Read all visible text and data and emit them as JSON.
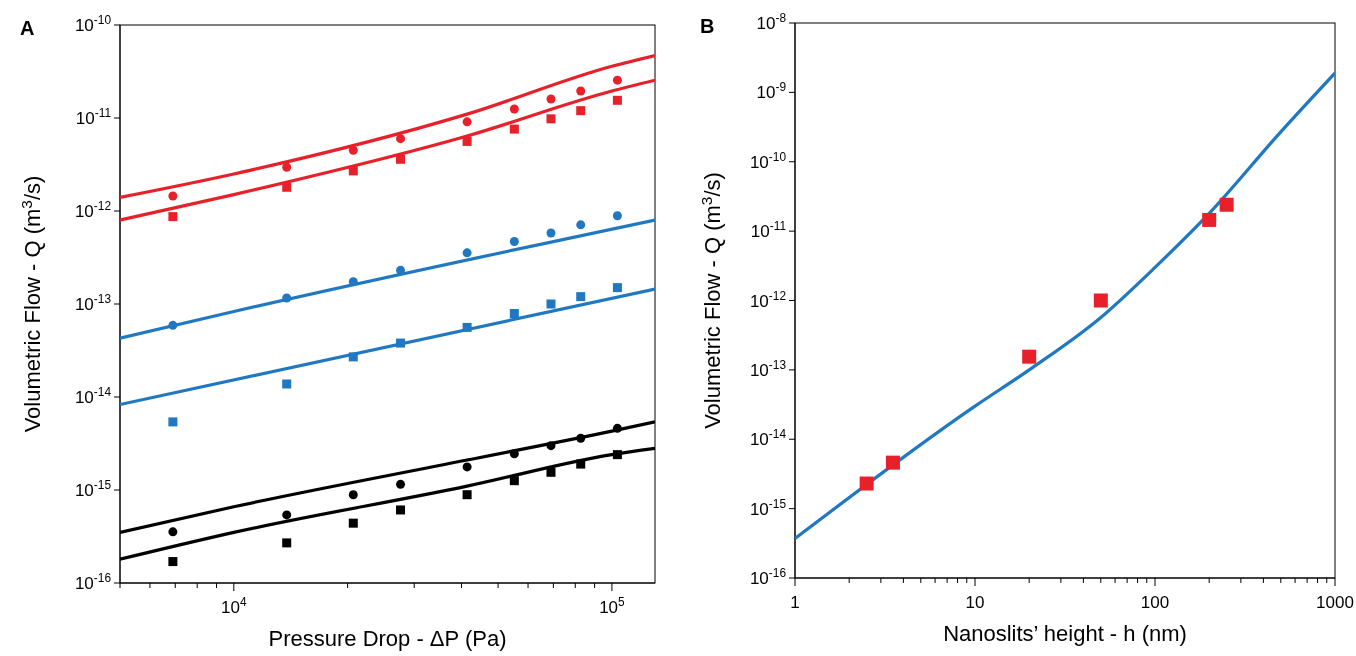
{
  "chart_data": [
    {
      "type": "scatter",
      "title": "A",
      "xlabel": "Pressure Drop - ΔP (Pa)",
      "ylabel": "Volumetric Flow - Q (m$^{3}$/s)",
      "log": "xy",
      "grid": false,
      "line_style": "solid",
      "xlim": [
        5000,
        130000
      ],
      "ylim": [
        1e-16,
        1e-10
      ],
      "xticks": [
        {
          "value": 5000,
          "label": null
        },
        {
          "value": 6000,
          "label": null
        },
        {
          "value": 7000,
          "label": null
        },
        {
          "value": 8000,
          "label": null
        },
        {
          "value": 9000,
          "label": null
        },
        {
          "value": 10000,
          "label": "10$^{4}$"
        },
        {
          "value": 20000,
          "label": null
        },
        {
          "value": 30000,
          "label": null
        },
        {
          "value": 40000,
          "label": null
        },
        {
          "value": 50000,
          "label": null
        },
        {
          "value": 60000,
          "label": null
        },
        {
          "value": 70000,
          "label": null
        },
        {
          "value": 80000,
          "label": null
        },
        {
          "value": 90000,
          "label": null
        },
        {
          "value": 100000,
          "label": "10$^{5}$"
        }
      ],
      "yticks": [
        {
          "value": 1e-16,
          "label": "10$^{-16}$"
        },
        {
          "value": 1e-15,
          "label": "10$^{-15}$"
        },
        {
          "value": 1e-14,
          "label": "10$^{-14}$"
        },
        {
          "value": 1e-13,
          "label": "10$^{-13}$"
        },
        {
          "value": 1e-12,
          "label": "10$^{-12}$"
        },
        {
          "value": 1e-11,
          "label": "10$^{-11}$"
        },
        {
          "value": 1e-10,
          "label": "10$^{-10}$"
        }
      ],
      "x": [
        6900,
        13800,
        20700,
        27600,
        41400,
        55200,
        69000,
        82700,
        103400
      ],
      "series": [
        {
          "marker": "circle",
          "color": "#e8202a",
          "values": [
            1.45e-12,
            2.95e-12,
            4.5e-12,
            6e-12,
            9.1e-12,
            1.25e-11,
            1.6e-11,
            1.95e-11,
            2.55e-11
          ]
        },
        {
          "marker": "square",
          "color": "#e8202a",
          "values": [
            8.7e-13,
            1.8e-12,
            2.7e-12,
            3.6e-12,
            5.6e-12,
            7.6e-12,
            9.8e-12,
            1.2e-11,
            1.55e-11
          ]
        },
        {
          "marker": "circle",
          "color": "#1f78c1",
          "values": [
            5.9e-14,
            1.16e-13,
            1.74e-13,
            2.3e-13,
            3.55e-13,
            4.7e-13,
            5.8e-13,
            7.1e-13,
            8.9e-13
          ]
        },
        {
          "marker": "square",
          "color": "#1f78c1",
          "values": [
            5.4e-15,
            1.38e-14,
            2.7e-14,
            3.8e-14,
            5.6e-14,
            7.9e-14,
            1e-13,
            1.2e-13,
            1.5e-13
          ]
        },
        {
          "marker": "circle",
          "color": "#000000",
          "values": [
            3.55e-16,
            5.4e-16,
            8.9e-16,
            1.15e-15,
            1.77e-15,
            2.45e-15,
            3e-15,
            3.6e-15,
            4.6e-15
          ]
        },
        {
          "marker": "square",
          "color": "#000000",
          "values": [
            1.7e-16,
            2.7e-16,
            4.4e-16,
            6.1e-16,
            8.9e-16,
            1.26e-15,
            1.55e-15,
            1.9e-15,
            2.4e-15
          ]
        },
        {
          "type": "line",
          "color": "#e8202a",
          "x": [
            5000,
            10000,
            41400,
            100000,
            130000
          ],
          "values": [
            1.4e-12,
            2.5e-12,
            1.1e-11,
            3.6e-11,
            4.7e-11
          ]
        },
        {
          "type": "line",
          "color": "#e8202a",
          "x": [
            5000,
            10000,
            41400,
            100000,
            130000
          ],
          "values": [
            8e-13,
            1.5e-12,
            6.4e-12,
            1.95e-11,
            2.55e-11
          ]
        },
        {
          "type": "line",
          "color": "#1f78c1",
          "x": [
            5000,
            10000,
            130000
          ],
          "values": [
            4.3e-14,
            8.3e-14,
            8e-13
          ]
        },
        {
          "type": "line",
          "color": "#1f78c1",
          "x": [
            5000,
            130000
          ],
          "values": [
            8.3e-15,
            1.45e-13
          ]
        },
        {
          "type": "line",
          "color": "#000000",
          "x": [
            5000,
            10000,
            41400,
            100000,
            130000
          ],
          "values": [
            3.5e-16,
            6.6e-16,
            2.1e-15,
            4.3e-15,
            5.4e-15
          ]
        },
        {
          "type": "line",
          "color": "#000000",
          "x": [
            5000,
            10000,
            41400,
            100000,
            130000
          ],
          "values": [
            1.8e-16,
            3.5e-16,
            1.1e-15,
            2.4e-15,
            2.8e-15
          ]
        }
      ]
    },
    {
      "type": "scatter",
      "title": "B",
      "xlabel": "Nanoslits’ height - h (nm)",
      "ylabel": "Volumetric Flow - Q (m$^{3}$/s)",
      "log": "xy",
      "grid": false,
      "line_style": "solid",
      "xlim": [
        1,
        1000
      ],
      "ylim": [
        1e-16,
        1e-08
      ],
      "xticks": [
        1,
        {
          "value": 2,
          "label": null
        },
        {
          "value": 3,
          "label": null
        },
        {
          "value": 4,
          "label": null
        },
        {
          "value": 5,
          "label": null
        },
        {
          "value": 6,
          "label": null
        },
        {
          "value": 7,
          "label": null
        },
        {
          "value": 8,
          "label": null
        },
        {
          "value": 9,
          "label": null
        },
        10,
        {
          "value": 20,
          "label": null
        },
        {
          "value": 30,
          "label": null
        },
        {
          "value": 40,
          "label": null
        },
        {
          "value": 50,
          "label": null
        },
        {
          "value": 60,
          "label": null
        },
        {
          "value": 70,
          "label": null
        },
        {
          "value": 80,
          "label": null
        },
        {
          "value": 90,
          "label": null
        },
        100,
        {
          "value": 200,
          "label": null
        },
        {
          "value": 300,
          "label": null
        },
        {
          "value": 400,
          "label": null
        },
        {
          "value": 500,
          "label": null
        },
        {
          "value": 600,
          "label": null
        },
        {
          "value": 700,
          "label": null
        },
        {
          "value": 800,
          "label": null
        },
        {
          "value": 900,
          "label": null
        },
        1000
      ],
      "yticks": [
        {
          "value": 1e-16,
          "label": "10$^{-16}$"
        },
        {
          "value": 1e-15,
          "label": "10$^{-15}$"
        },
        {
          "value": 1e-14,
          "label": "10$^{-14}$"
        },
        {
          "value": 1e-13,
          "label": "10$^{-13}$"
        },
        {
          "value": 1e-12,
          "label": "10$^{-12}$"
        },
        {
          "value": 1e-11,
          "label": "10$^{-11}$"
        },
        {
          "value": 1e-10,
          "label": "10$^{-10}$"
        },
        {
          "value": 1e-09,
          "label": "10$^{-9}$"
        },
        {
          "value": 1e-08,
          "label": "10$^{-8}$"
        }
      ],
      "series": [
        {
          "type": "line",
          "color": "#1f78c1",
          "x": [
            1,
            10,
            20,
            50,
            100,
            200,
            500,
            1000
          ],
          "values": [
            3.7e-16,
            3e-14,
            1e-13,
            5.7e-13,
            3e-12,
            1.8e-11,
            2.7e-10,
            1.9e-09
          ]
        },
        {
          "marker": "square",
          "color": "#e8202a",
          "x": [
            2.5,
            3.5,
            20,
            50,
            200,
            250
          ],
          "values": [
            2.3e-15,
            4.6e-15,
            1.55e-13,
            1e-12,
            1.45e-11,
            2.4e-11
          ]
        }
      ]
    }
  ]
}
